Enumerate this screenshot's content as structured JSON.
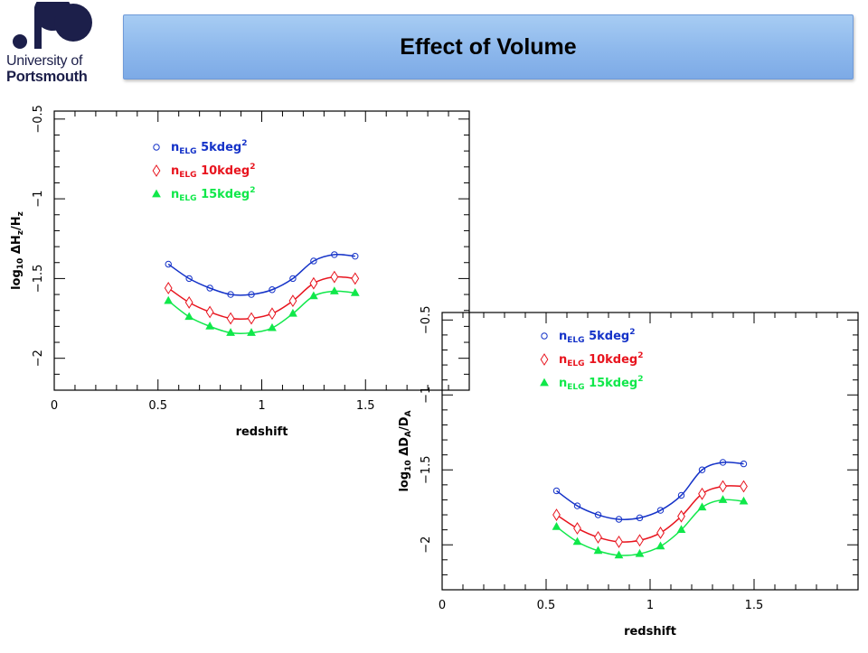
{
  "header": {
    "logo_line1": "University of",
    "logo_line2": "Portsmouth",
    "title": "Effect of Volume"
  },
  "colors": {
    "title_bar": "#8db8ec",
    "logo_navy": "#1c1f4a",
    "series_5k": "#1432c8",
    "series_10k": "#e8141e",
    "series_15k": "#10e84a"
  },
  "chart_data": [
    {
      "type": "line",
      "xlabel": "redshift",
      "ylabel_parts": [
        "log",
        "10",
        " ΔH",
        "z",
        "/H",
        "z"
      ],
      "xlim": [
        0,
        2
      ],
      "ylim": [
        -2.2,
        -0.45
      ],
      "xticks": [
        0,
        0.5,
        1,
        1.5
      ],
      "yticks": [
        -0.5,
        -1,
        -1.5,
        -2
      ],
      "x": [
        0.55,
        0.65,
        0.75,
        0.85,
        0.95,
        1.05,
        1.15,
        1.25,
        1.35,
        1.45
      ],
      "series": [
        {
          "name_sub": "ELG",
          "name_rest": "5kdeg",
          "marker": "circle",
          "color": "#1432c8",
          "values": [
            -1.41,
            -1.5,
            -1.56,
            -1.6,
            -1.6,
            -1.57,
            -1.5,
            -1.39,
            -1.35,
            -1.36
          ]
        },
        {
          "name_sub": "ELG",
          "name_rest": "10kdeg",
          "marker": "diamond",
          "color": "#e8141e",
          "values": [
            -1.56,
            -1.65,
            -1.71,
            -1.75,
            -1.75,
            -1.72,
            -1.64,
            -1.53,
            -1.49,
            -1.5
          ]
        },
        {
          "name_sub": "ELG",
          "name_rest": "15kdeg",
          "marker": "triangle",
          "color": "#10e84a",
          "values": [
            -1.64,
            -1.74,
            -1.8,
            -1.84,
            -1.84,
            -1.81,
            -1.72,
            -1.61,
            -1.58,
            -1.59
          ]
        }
      ]
    },
    {
      "type": "line",
      "xlabel": "redshift",
      "ylabel_parts": [
        "log",
        "10",
        " ΔD",
        "A",
        "/D",
        "A"
      ],
      "xlim": [
        0,
        2
      ],
      "ylim": [
        -2.3,
        -0.45
      ],
      "xticks": [
        0,
        0.5,
        1,
        1.5
      ],
      "yticks": [
        -0.5,
        -1,
        -1.5,
        -2
      ],
      "x": [
        0.55,
        0.65,
        0.75,
        0.85,
        0.95,
        1.05,
        1.15,
        1.25,
        1.35,
        1.45
      ],
      "series": [
        {
          "name_sub": "ELG",
          "name_rest": "5kdeg",
          "marker": "circle",
          "color": "#1432c8",
          "values": [
            -1.64,
            -1.74,
            -1.8,
            -1.83,
            -1.82,
            -1.77,
            -1.67,
            -1.5,
            -1.45,
            -1.46
          ]
        },
        {
          "name_sub": "ELG",
          "name_rest": "10kdeg",
          "marker": "diamond",
          "color": "#e8141e",
          "values": [
            -1.8,
            -1.89,
            -1.95,
            -1.98,
            -1.97,
            -1.92,
            -1.81,
            -1.66,
            -1.61,
            -1.61
          ]
        },
        {
          "name_sub": "ELG",
          "name_rest": "15kdeg",
          "marker": "triangle",
          "color": "#10e84a",
          "values": [
            -1.88,
            -1.98,
            -2.04,
            -2.07,
            -2.06,
            -2.01,
            -1.9,
            -1.75,
            -1.7,
            -1.71
          ]
        }
      ]
    }
  ]
}
